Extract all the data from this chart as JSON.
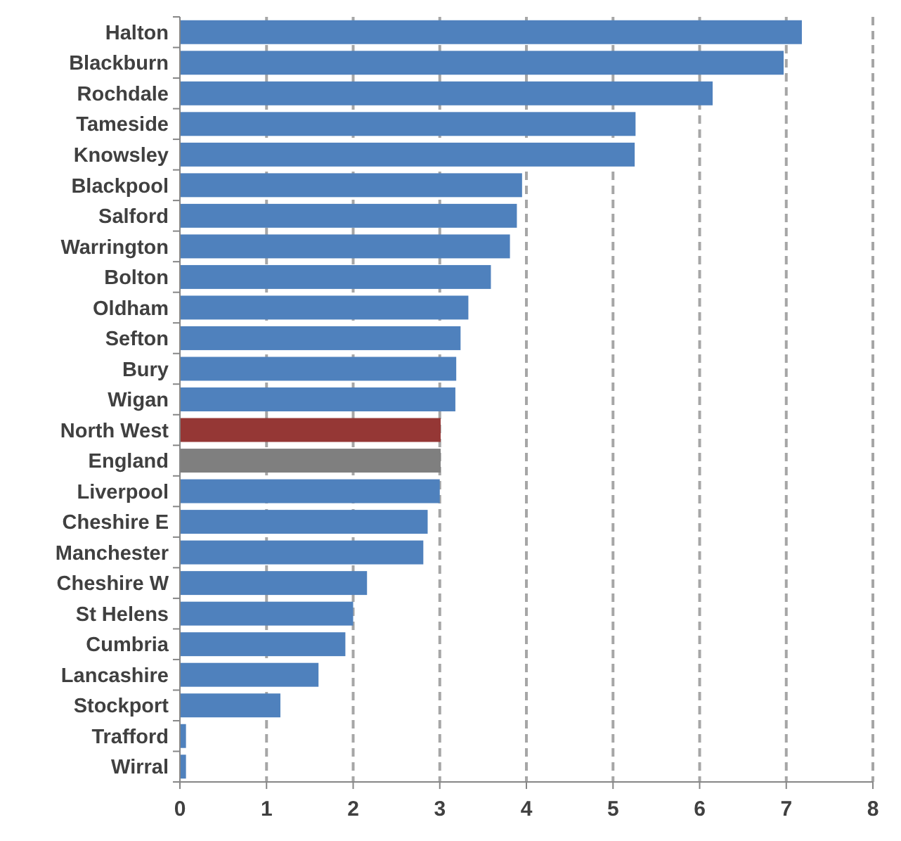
{
  "chart_data": {
    "type": "bar",
    "orientation": "horizontal",
    "categories": [
      "Halton",
      "Blackburn",
      "Rochdale",
      "Tameside",
      "Knowsley",
      "Blackpool",
      "Salford",
      "Warrington",
      "Bolton",
      "Oldham",
      "Sefton",
      "Bury",
      "Wigan",
      "North West",
      "England",
      "Liverpool",
      "Cheshire E",
      "Manchester",
      "Cheshire W",
      "St Helens",
      "Cumbria",
      "Lancashire",
      "Stockport",
      "Trafford",
      "Wirral"
    ],
    "values": [
      7.18,
      6.97,
      6.15,
      5.26,
      5.25,
      3.95,
      3.89,
      3.81,
      3.59,
      3.33,
      3.24,
      3.19,
      3.18,
      3.01,
      3.01,
      3.0,
      2.86,
      2.81,
      2.16,
      2.0,
      1.91,
      1.6,
      1.16,
      0.07,
      0.07
    ],
    "colors": [
      "#4f81bd",
      "#4f81bd",
      "#4f81bd",
      "#4f81bd",
      "#4f81bd",
      "#4f81bd",
      "#4f81bd",
      "#4f81bd",
      "#4f81bd",
      "#4f81bd",
      "#4f81bd",
      "#4f81bd",
      "#4f81bd",
      "#953735",
      "#7f7f7f",
      "#4f81bd",
      "#4f81bd",
      "#4f81bd",
      "#4f81bd",
      "#4f81bd",
      "#4f81bd",
      "#4f81bd",
      "#4f81bd",
      "#4f81bd",
      "#4f81bd"
    ],
    "xlim": [
      0,
      8
    ],
    "xticks": [
      0,
      1,
      2,
      3,
      4,
      5,
      6,
      7,
      8
    ],
    "grid": "x"
  }
}
